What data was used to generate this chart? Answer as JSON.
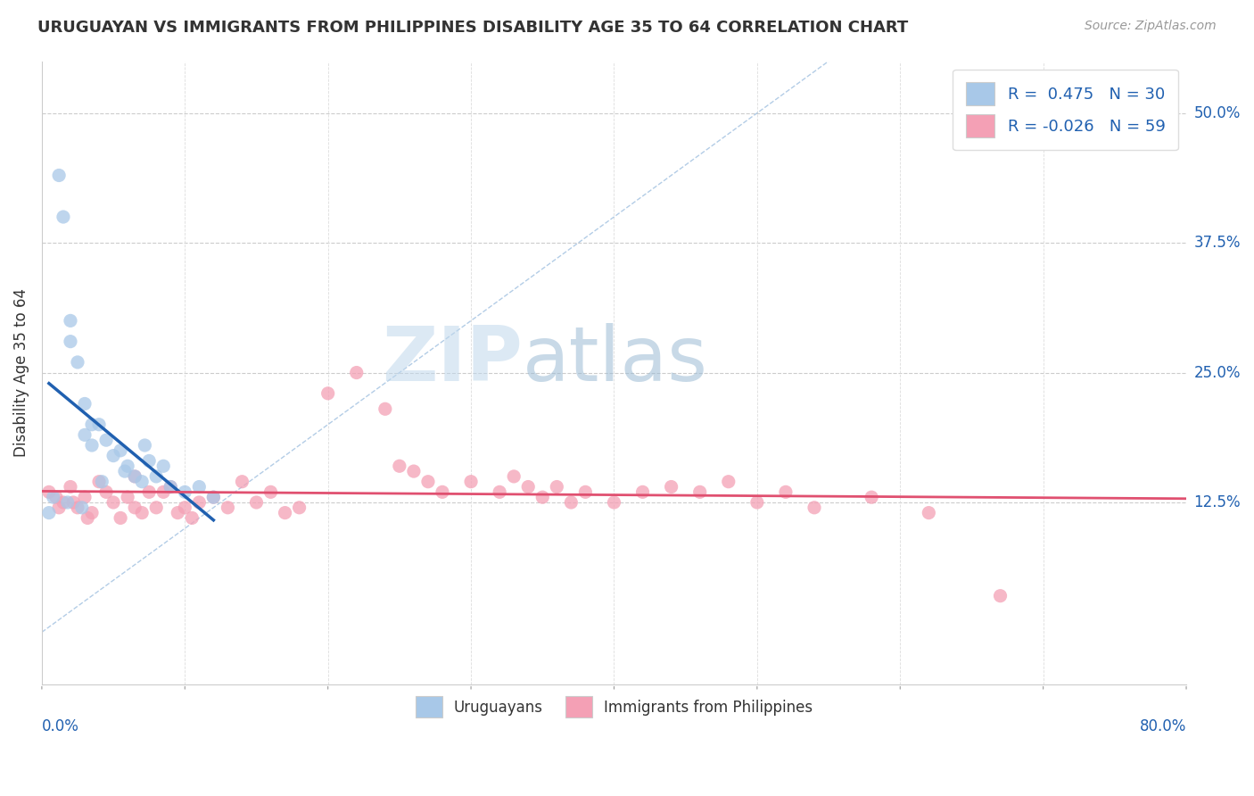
{
  "title": "URUGUAYAN VS IMMIGRANTS FROM PHILIPPINES DISABILITY AGE 35 TO 64 CORRELATION CHART",
  "source": "Source: ZipAtlas.com",
  "ylabel": "Disability Age 35 to 64",
  "xlim": [
    0.0,
    80.0
  ],
  "ylim": [
    -5.0,
    55.0
  ],
  "yticks": [
    12.5,
    25.0,
    37.5,
    50.0
  ],
  "ytick_labels": [
    "12.5%",
    "25.0%",
    "37.5%",
    "50.0%"
  ],
  "R_blue": 0.475,
  "N_blue": 30,
  "R_pink": -0.026,
  "N_pink": 59,
  "blue_scatter_color": "#A8C8E8",
  "pink_scatter_color": "#F4A0B5",
  "blue_line_color": "#2060B0",
  "pink_line_color": "#E05070",
  "diag_color": "#A0C0E0",
  "legend_label_blue": "Uruguayans",
  "legend_label_pink": "Immigrants from Philippines",
  "watermark_zip_color": "#C0D8EC",
  "watermark_atlas_color": "#9BBBD4",
  "blue_x": [
    1.2,
    1.5,
    2.0,
    2.0,
    2.5,
    3.0,
    3.5,
    3.5,
    4.0,
    4.5,
    5.0,
    5.5,
    6.0,
    6.5,
    7.0,
    7.5,
    8.0,
    9.0,
    10.0,
    11.0,
    12.0,
    0.8,
    1.8,
    2.8,
    4.2,
    5.8,
    7.2,
    8.5,
    0.5,
    3.0
  ],
  "blue_y": [
    44.0,
    40.0,
    30.0,
    28.0,
    26.0,
    22.0,
    20.0,
    18.0,
    20.0,
    18.5,
    17.0,
    17.5,
    16.0,
    15.0,
    14.5,
    16.5,
    15.0,
    14.0,
    13.5,
    14.0,
    13.0,
    13.0,
    12.5,
    12.0,
    14.5,
    15.5,
    18.0,
    16.0,
    11.5,
    19.0
  ],
  "pink_x": [
    0.5,
    1.0,
    1.5,
    2.0,
    2.5,
    3.0,
    3.5,
    4.0,
    4.5,
    5.0,
    5.5,
    6.0,
    6.5,
    7.0,
    7.5,
    8.0,
    8.5,
    9.0,
    9.5,
    10.0,
    10.5,
    11.0,
    12.0,
    13.0,
    14.0,
    15.0,
    16.0,
    17.0,
    18.0,
    20.0,
    22.0,
    24.0,
    25.0,
    26.0,
    27.0,
    28.0,
    30.0,
    32.0,
    33.0,
    34.0,
    35.0,
    36.0,
    37.0,
    38.0,
    40.0,
    42.0,
    44.0,
    46.0,
    48.0,
    50.0,
    52.0,
    54.0,
    58.0,
    62.0,
    67.0,
    1.2,
    2.2,
    3.2,
    6.5
  ],
  "pink_y": [
    13.5,
    13.0,
    12.5,
    14.0,
    12.0,
    13.0,
    11.5,
    14.5,
    13.5,
    12.5,
    11.0,
    13.0,
    12.0,
    11.5,
    13.5,
    12.0,
    13.5,
    14.0,
    11.5,
    12.0,
    11.0,
    12.5,
    13.0,
    12.0,
    14.5,
    12.5,
    13.5,
    11.5,
    12.0,
    23.0,
    25.0,
    21.5,
    16.0,
    15.5,
    14.5,
    13.5,
    14.5,
    13.5,
    15.0,
    14.0,
    13.0,
    14.0,
    12.5,
    13.5,
    12.5,
    13.5,
    14.0,
    13.5,
    14.5,
    12.5,
    13.5,
    12.0,
    13.0,
    11.5,
    3.5,
    12.0,
    12.5,
    11.0,
    15.0
  ]
}
